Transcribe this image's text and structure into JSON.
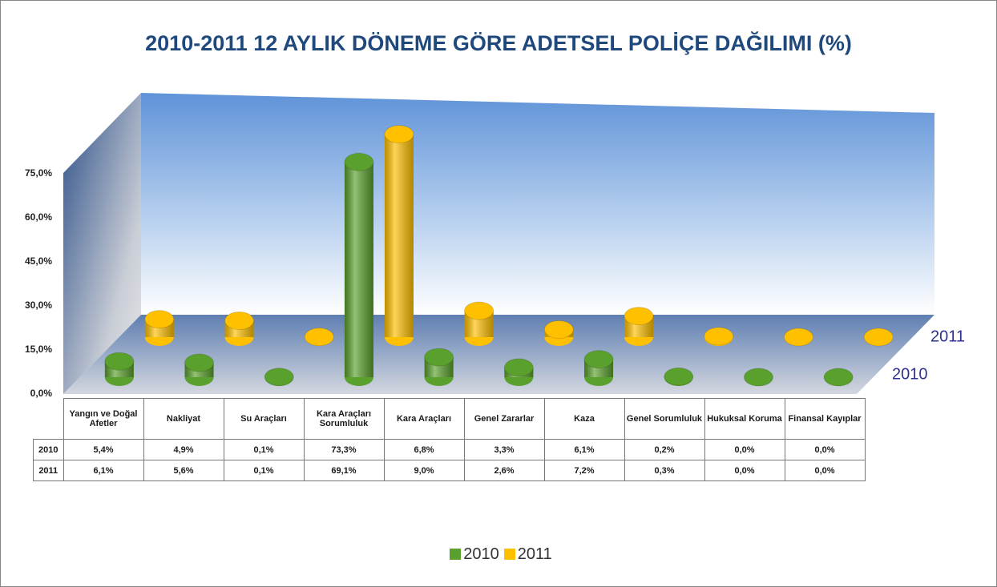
{
  "chart_data": {
    "type": "bar",
    "title": "2010-2011  12 AYLIK DÖNEME GÖRE ADETSEL POLİÇE DAĞILIMI (%)",
    "categories": [
      "Yangın ve Doğal Afetler",
      "Nakliyat",
      "Su Araçları",
      "Kara Araçları Sorumluluk",
      "Kara Araçları",
      "Genel Zararlar",
      "Kaza",
      "Genel Sorumluluk",
      "Hukuksal Koruma",
      "Finansal Kayıplar"
    ],
    "series": [
      {
        "name": "2010",
        "color": "#5aa02c",
        "values": [
          5.4,
          4.9,
          0.1,
          73.3,
          6.8,
          3.3,
          6.1,
          0.2,
          0.0,
          0.0
        ],
        "value_labels": [
          "5,4%",
          "4,9%",
          "0,1%",
          "73,3%",
          "6,8%",
          "3,3%",
          "6,1%",
          "0,2%",
          "0,0%",
          "0,0%"
        ]
      },
      {
        "name": "2011",
        "color": "#ffc000",
        "values": [
          6.1,
          5.6,
          0.1,
          69.1,
          9.0,
          2.6,
          7.2,
          0.3,
          0.0,
          0.0
        ],
        "value_labels": [
          "6,1%",
          "5,6%",
          "0,1%",
          "69,1%",
          "9,0%",
          "2,6%",
          "7,2%",
          "0,3%",
          "0,0%",
          "0,0%"
        ]
      }
    ],
    "ylim": [
      0,
      90
    ],
    "yticks": [
      {
        "value": 0,
        "label": "0,0%"
      },
      {
        "value": 15,
        "label": "15,0%"
      },
      {
        "value": 30,
        "label": "30,0%"
      },
      {
        "value": 45,
        "label": "45,0%"
      },
      {
        "value": 60,
        "label": "60,0%"
      },
      {
        "value": 75,
        "label": "75,0%"
      }
    ],
    "grid": false,
    "legend": "bottom"
  }
}
